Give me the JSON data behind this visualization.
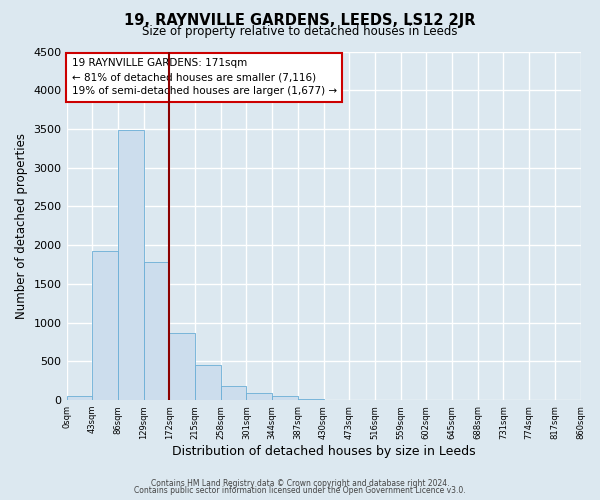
{
  "title_line1": "19, RAYNVILLE GARDENS, LEEDS, LS12 2JR",
  "title_line2": "Size of property relative to detached houses in Leeds",
  "xlabel": "Distribution of detached houses by size in Leeds",
  "ylabel": "Number of detached properties",
  "bin_labels": [
    "0sqm",
    "43sqm",
    "86sqm",
    "129sqm",
    "172sqm",
    "215sqm",
    "258sqm",
    "301sqm",
    "344sqm",
    "387sqm",
    "430sqm",
    "473sqm",
    "516sqm",
    "559sqm",
    "602sqm",
    "645sqm",
    "688sqm",
    "731sqm",
    "774sqm",
    "817sqm",
    "860sqm"
  ],
  "bar_heights": [
    50,
    1920,
    3490,
    1780,
    860,
    455,
    185,
    90,
    50,
    20,
    0,
    0,
    0,
    0,
    0,
    0,
    0,
    0,
    0,
    0
  ],
  "bar_color": "#ccdded",
  "bar_edge_color": "#6aaed6",
  "vline_x": 4,
  "vline_color": "#8b0000",
  "annotation_text": "19 RAYNVILLE GARDENS: 171sqm\n← 81% of detached houses are smaller (7,116)\n19% of semi-detached houses are larger (1,677) →",
  "annotation_box_color": "#ffffff",
  "annotation_box_edge_color": "#cc0000",
  "ylim": [
    0,
    4500
  ],
  "yticks": [
    0,
    500,
    1000,
    1500,
    2000,
    2500,
    3000,
    3500,
    4000,
    4500
  ],
  "footer_line1": "Contains HM Land Registry data © Crown copyright and database right 2024.",
  "footer_line2": "Contains public sector information licensed under the Open Government Licence v3.0.",
  "bg_color": "#dce8f0",
  "plot_bg_color": "#dce8f0",
  "grid_color": "#ffffff"
}
